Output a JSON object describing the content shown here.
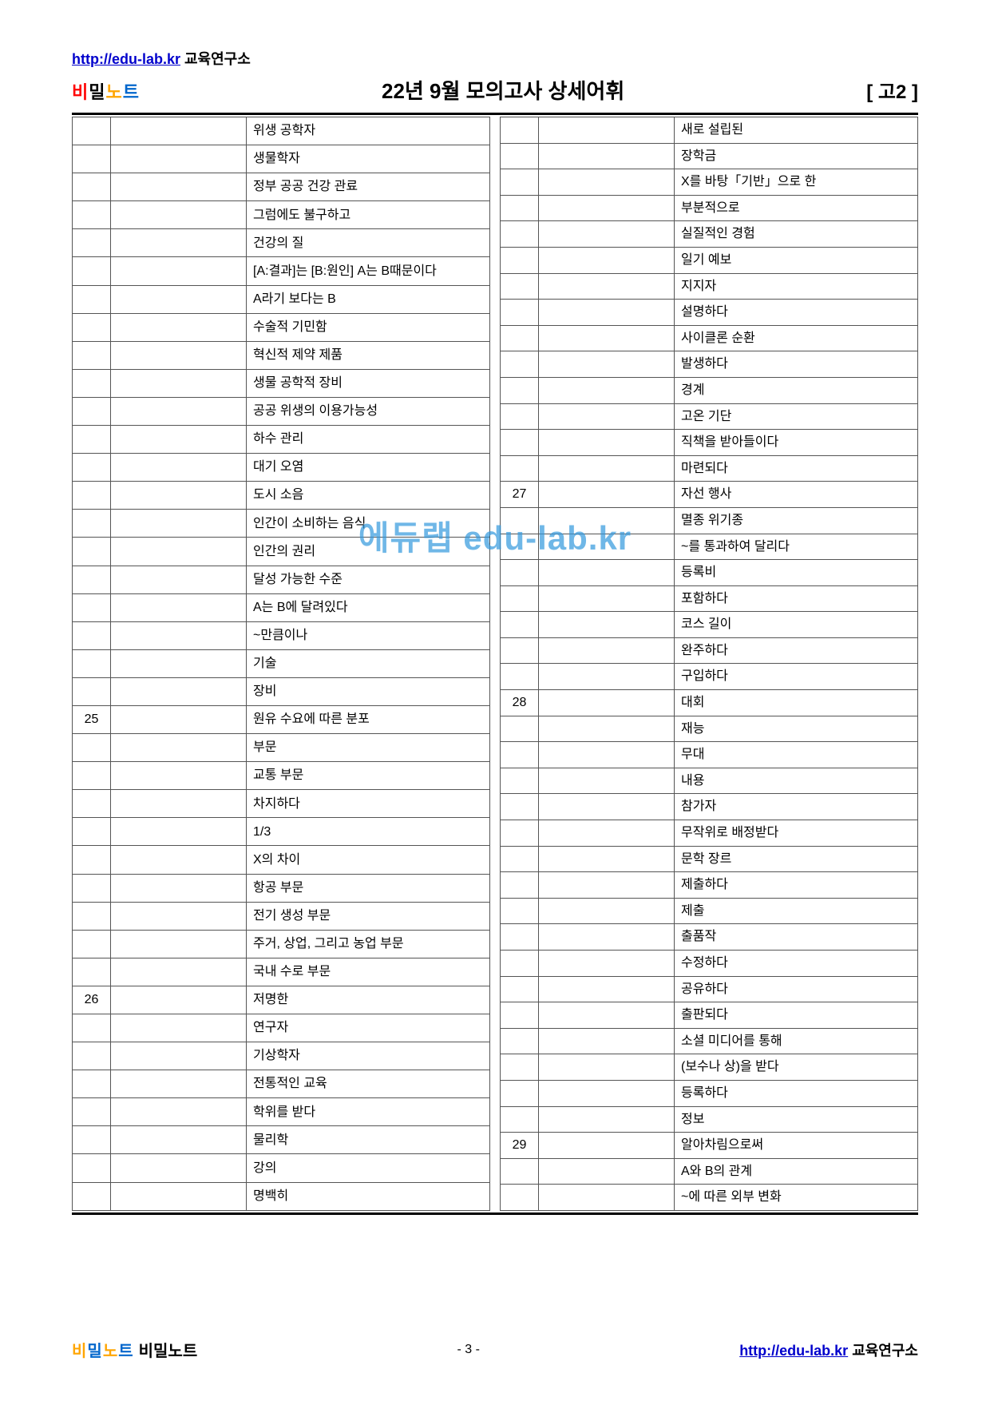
{
  "header": {
    "url": "http://edu-lab.kr",
    "lab_text": "  교육연구소",
    "logo": {
      "p1": "비",
      "p2": "밀",
      "p3": "노",
      "p4": "트"
    },
    "title": "22년 9월 모의고사 상세어휘",
    "grade": "[ 고2 ]"
  },
  "watermark": "에듀랩 edu-lab.kr",
  "left_rows": [
    {
      "n": "",
      "m": "",
      "t": "위생 공학자"
    },
    {
      "n": "",
      "m": "",
      "t": "생물학자"
    },
    {
      "n": "",
      "m": "",
      "t": "정부 공공 건강 관료"
    },
    {
      "n": "",
      "m": "",
      "t": "그럼에도 불구하고"
    },
    {
      "n": "",
      "m": "",
      "t": "건강의 질"
    },
    {
      "n": "",
      "m": "",
      "t": "[A:결과]는 [B:원인] A는 B때문이다"
    },
    {
      "n": "",
      "m": "",
      "t": "A라기 보다는 B"
    },
    {
      "n": "",
      "m": "",
      "t": "수술적 기민함"
    },
    {
      "n": "",
      "m": "",
      "t": "혁신적 제약 제품"
    },
    {
      "n": "",
      "m": "",
      "t": "생물 공학적 장비"
    },
    {
      "n": "",
      "m": "",
      "t": "공공 위생의 이용가능성"
    },
    {
      "n": "",
      "m": "",
      "t": "하수 관리"
    },
    {
      "n": "",
      "m": "",
      "t": "대기 오염"
    },
    {
      "n": "",
      "m": "",
      "t": "도시 소음"
    },
    {
      "n": "",
      "m": "",
      "t": "인간이 소비하는 음식"
    },
    {
      "n": "",
      "m": "",
      "t": "인간의 권리"
    },
    {
      "n": "",
      "m": "",
      "t": "달성 가능한 수준"
    },
    {
      "n": "",
      "m": "",
      "t": "A는 B에 달려있다"
    },
    {
      "n": "",
      "m": "",
      "t": "~만큼이나"
    },
    {
      "n": "",
      "m": "",
      "t": "기술"
    },
    {
      "n": "",
      "m": "",
      "t": "장비"
    },
    {
      "n": "25",
      "m": "",
      "t": "원유 수요에 따른 분포"
    },
    {
      "n": "",
      "m": "",
      "t": "부문"
    },
    {
      "n": "",
      "m": "",
      "t": "교통 부문"
    },
    {
      "n": "",
      "m": "",
      "t": "차지하다"
    },
    {
      "n": "",
      "m": "",
      "t": "1/3"
    },
    {
      "n": "",
      "m": "",
      "t": "X의 차이"
    },
    {
      "n": "",
      "m": "",
      "t": "항공 부문"
    },
    {
      "n": "",
      "m": "",
      "t": "전기 생성 부문"
    },
    {
      "n": "",
      "m": "",
      "t": "주거, 상업, 그리고 농업 부문"
    },
    {
      "n": "",
      "m": "",
      "t": "국내 수로 부문"
    },
    {
      "n": "26",
      "m": "",
      "t": "저명한"
    },
    {
      "n": "",
      "m": "",
      "t": "연구자"
    },
    {
      "n": "",
      "m": "",
      "t": "기상학자"
    },
    {
      "n": "",
      "m": "",
      "t": "전통적인 교육"
    },
    {
      "n": "",
      "m": "",
      "t": "학위를 받다"
    },
    {
      "n": "",
      "m": "",
      "t": "물리학"
    },
    {
      "n": "",
      "m": "",
      "t": "강의"
    },
    {
      "n": "",
      "m": "",
      "t": "명백히"
    }
  ],
  "right_rows": [
    {
      "n": "",
      "m": "",
      "t": "새로 설립된"
    },
    {
      "n": "",
      "m": "",
      "t": "장학금"
    },
    {
      "n": "",
      "m": "",
      "t": "X를 바탕「기반」으로 한"
    },
    {
      "n": "",
      "m": "",
      "t": "부분적으로"
    },
    {
      "n": "",
      "m": "",
      "t": "실질적인 경험"
    },
    {
      "n": "",
      "m": "",
      "t": "일기 예보"
    },
    {
      "n": "",
      "m": "",
      "t": "지지자"
    },
    {
      "n": "",
      "m": "",
      "t": "설명하다"
    },
    {
      "n": "",
      "m": "",
      "t": "사이클론 순환"
    },
    {
      "n": "",
      "m": "",
      "t": "발생하다"
    },
    {
      "n": "",
      "m": "",
      "t": "경계"
    },
    {
      "n": "",
      "m": "",
      "t": "고온 기단"
    },
    {
      "n": "",
      "m": "",
      "t": "직책을 받아들이다"
    },
    {
      "n": "",
      "m": "",
      "t": "마련되다"
    },
    {
      "n": "27",
      "m": "",
      "t": "자선 행사"
    },
    {
      "n": "",
      "m": "",
      "t": "멸종 위기종"
    },
    {
      "n": "",
      "m": "",
      "t": "~를 통과하여 달리다"
    },
    {
      "n": "",
      "m": "",
      "t": "등록비"
    },
    {
      "n": "",
      "m": "",
      "t": "포함하다"
    },
    {
      "n": "",
      "m": "",
      "t": "코스 길이"
    },
    {
      "n": "",
      "m": "",
      "t": "완주하다"
    },
    {
      "n": "",
      "m": "",
      "t": "구입하다"
    },
    {
      "n": "28",
      "m": "",
      "t": "대회"
    },
    {
      "n": "",
      "m": "",
      "t": "재능"
    },
    {
      "n": "",
      "m": "",
      "t": "무대"
    },
    {
      "n": "",
      "m": "",
      "t": "내용"
    },
    {
      "n": "",
      "m": "",
      "t": "참가자"
    },
    {
      "n": "",
      "m": "",
      "t": "무작위로 배정받다"
    },
    {
      "n": "",
      "m": "",
      "t": "문학 장르"
    },
    {
      "n": "",
      "m": "",
      "t": "제출하다"
    },
    {
      "n": "",
      "m": "",
      "t": "제출"
    },
    {
      "n": "",
      "m": "",
      "t": "출품작"
    },
    {
      "n": "",
      "m": "",
      "t": "수정하다"
    },
    {
      "n": "",
      "m": "",
      "t": "공유하다"
    },
    {
      "n": "",
      "m": "",
      "t": "출판되다"
    },
    {
      "n": "",
      "m": "",
      "t": "소셜 미디어를 통해"
    },
    {
      "n": "",
      "m": "",
      "t": "(보수나 상)을 받다"
    },
    {
      "n": "",
      "m": "",
      "t": "등록하다"
    },
    {
      "n": "",
      "m": "",
      "t": "정보"
    },
    {
      "n": "29",
      "m": "",
      "t": "알아차림으로써"
    },
    {
      "n": "",
      "m": "",
      "t": "A와 B의 관계"
    },
    {
      "n": "",
      "m": "",
      "t": "~에 따른 외부 변화"
    }
  ],
  "footer": {
    "logo": {
      "p1": "비",
      "p2": "밀",
      "p3": "노",
      "p4": "트"
    },
    "text": "비밀노트",
    "page": "- 3 -",
    "url": "http://edu-lab.kr",
    "lab_text": "  교육연구소"
  }
}
